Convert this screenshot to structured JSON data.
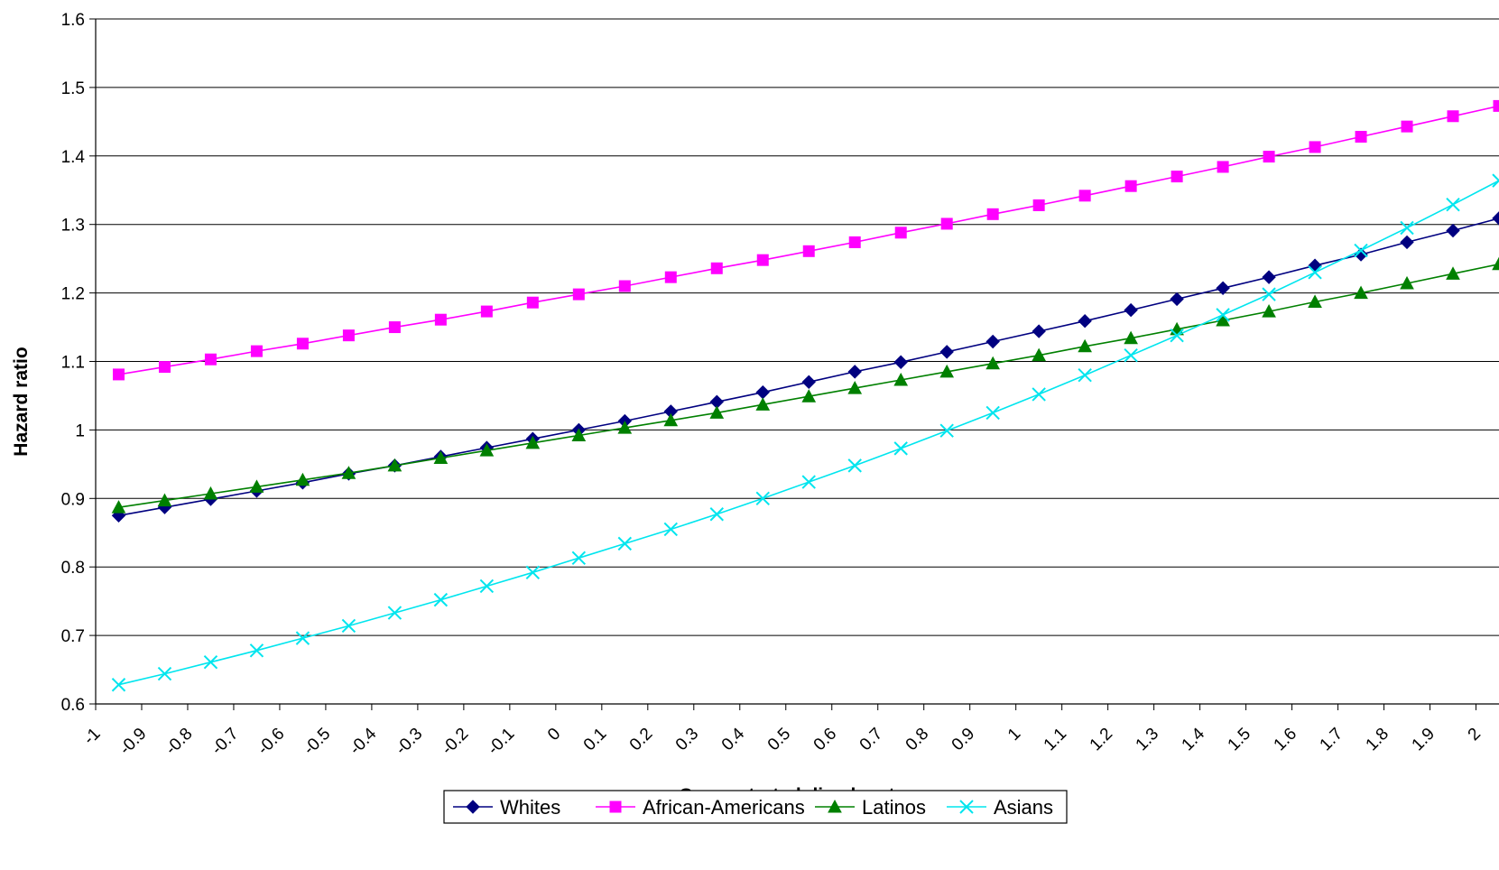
{
  "chart_data": {
    "type": "line",
    "title": "",
    "xlabel": "Concentrated disadvantage",
    "ylabel": "Hazard ratio",
    "ylim": [
      0.6,
      1.6
    ],
    "yticks": [
      "0.6",
      "0.7",
      "0.8",
      "0.9",
      "1",
      "1.1",
      "1.2",
      "1.3",
      "1.4",
      "1.5",
      "1.6"
    ],
    "xticks": [
      "-1",
      "-0.9",
      "-0.8",
      "-0.7",
      "-0.6",
      "-0.5",
      "-0.4",
      "-0.3",
      "-0.2",
      "-0.1",
      "0",
      "0.1",
      "0.2",
      "0.3",
      "0.4",
      "0.5",
      "0.6",
      "0.7",
      "0.8",
      "0.9",
      "1",
      "1.1",
      "1.2",
      "1.3",
      "1.4",
      "1.5",
      "1.6",
      "1.7",
      "1.8",
      "1.9",
      "2"
    ],
    "x": [
      -0.95,
      -0.85,
      -0.75,
      -0.65,
      -0.55,
      -0.45,
      -0.35,
      -0.25,
      -0.15,
      -0.05,
      0.05,
      0.15,
      0.25,
      0.35,
      0.45,
      0.55,
      0.65,
      0.75,
      0.85,
      0.95,
      1.05,
      1.15,
      1.25,
      1.35,
      1.45,
      1.55,
      1.65,
      1.75,
      1.85,
      1.95,
      2.05
    ],
    "grid": "horizontal",
    "legend_position": "bottom",
    "series": [
      {
        "name": "Whites",
        "color": "#000080",
        "marker": "diamond",
        "values": [
          0.875,
          0.887,
          0.899,
          0.911,
          0.923,
          0.936,
          0.948,
          0.961,
          0.974,
          0.987,
          1.0,
          1.013,
          1.027,
          1.041,
          1.055,
          1.07,
          1.085,
          1.099,
          1.114,
          1.129,
          1.144,
          1.159,
          1.175,
          1.191,
          1.207,
          1.223,
          1.24,
          1.256,
          1.274,
          1.291,
          1.309
        ]
      },
      {
        "name": "African-Americans",
        "color": "#FF00FF",
        "marker": "square",
        "values": [
          1.081,
          1.092,
          1.103,
          1.115,
          1.126,
          1.138,
          1.15,
          1.161,
          1.173,
          1.186,
          1.198,
          1.21,
          1.223,
          1.236,
          1.248,
          1.261,
          1.274,
          1.288,
          1.301,
          1.315,
          1.328,
          1.342,
          1.356,
          1.37,
          1.384,
          1.399,
          1.413,
          1.428,
          1.443,
          1.458,
          1.473
        ]
      },
      {
        "name": "Latinos",
        "color": "#008000",
        "marker": "triangle",
        "values": [
          0.887,
          0.897,
          0.907,
          0.917,
          0.927,
          0.937,
          0.948,
          0.959,
          0.97,
          0.981,
          0.992,
          1.003,
          1.014,
          1.025,
          1.037,
          1.049,
          1.061,
          1.073,
          1.085,
          1.097,
          1.109,
          1.122,
          1.134,
          1.147,
          1.16,
          1.173,
          1.187,
          1.2,
          1.214,
          1.228,
          1.242
        ]
      },
      {
        "name": "Asians",
        "color": "#00E5EE",
        "marker": "x",
        "values": [
          0.628,
          0.644,
          0.661,
          0.678,
          0.696,
          0.714,
          0.733,
          0.752,
          0.772,
          0.792,
          0.813,
          0.834,
          0.855,
          0.877,
          0.9,
          0.924,
          0.948,
          0.973,
          0.999,
          1.025,
          1.052,
          1.08,
          1.109,
          1.138,
          1.168,
          1.198,
          1.23,
          1.262,
          1.295,
          1.329,
          1.364
        ]
      }
    ]
  }
}
